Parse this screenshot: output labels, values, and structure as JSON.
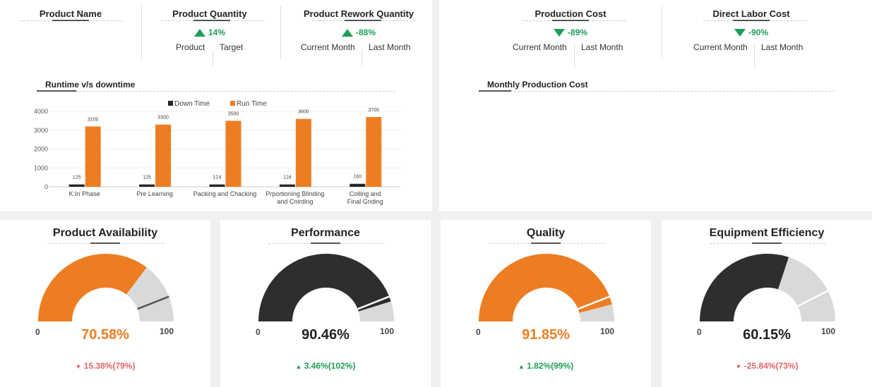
{
  "kpis_left": {
    "product_name": {
      "title": "Product Name"
    },
    "product_quantity": {
      "title": "Product Quantity",
      "delta": "14%",
      "direction": "up",
      "col1": "Product",
      "col2": "Target"
    },
    "product_rework": {
      "title": "Product Rework Quantity",
      "delta": "-88%",
      "direction": "up",
      "col1": "Current Month",
      "col2": "Last Month"
    }
  },
  "kpis_right": {
    "production_cost": {
      "title": "Production Cost",
      "delta": "-89%",
      "direction": "down",
      "col1": "Current Month",
      "col2": "Last Month"
    },
    "direct_labor": {
      "title": "Direct Labor Cost",
      "delta": "-90%",
      "direction": "down",
      "col1": "Current Month",
      "col2": "Last Month"
    }
  },
  "sections": {
    "runtime": "Runtime v/s downtime",
    "monthly": "Monthly Production Cost"
  },
  "chart_data": {
    "type": "bar",
    "categories": [
      "K:In Phase",
      "Pre Learning",
      "Packing and Chacking",
      "Prportioning Blinding and Cnirding",
      "Colling and Final Griding"
    ],
    "series": [
      {
        "name": "Down Time",
        "values": [
          125,
          125,
          124,
          124,
          160
        ],
        "color": "#262626"
      },
      {
        "name": "Run Time",
        "values": [
          3200,
          3300,
          3500,
          3600,
          3700
        ],
        "color": "#ed7d22"
      }
    ],
    "yticks": [
      "0",
      "1000",
      "2000",
      "3000",
      "4000"
    ],
    "ylim": [
      0,
      4000
    ],
    "legend": "top",
    "grid": true
  },
  "gauges": [
    {
      "title": "Product Availability",
      "value": 70.58,
      "value_label": "70.58%",
      "target": 88,
      "min_label": "0",
      "max_label": "100",
      "color": "#ed7d22",
      "marker_color": "#555555",
      "value_color": "#ed7d22",
      "delta": "15.38%(79%)",
      "delta_dir": "down",
      "delta_color": "#e06666"
    },
    {
      "title": "Performance",
      "value": 90.46,
      "value_label": "90.46%",
      "target": 88,
      "min_label": "0",
      "max_label": "100",
      "color": "#2e2e2e",
      "marker_color": "#ffffff",
      "value_color": "#222222",
      "delta": "3.46%(102%)",
      "delta_dir": "up",
      "delta_color": "#1e9e57"
    },
    {
      "title": "Quality",
      "value": 91.85,
      "value_label": "91.85%",
      "target": 88,
      "min_label": "0",
      "max_label": "100",
      "color": "#ed7d22",
      "marker_color": "#ffffff",
      "value_color": "#ed7d22",
      "delta": "1.82%(99%)",
      "delta_dir": "up",
      "delta_color": "#1e9e57"
    },
    {
      "title": "Equipment Efficiency",
      "value": 60.15,
      "value_label": "60.15%",
      "target": 85,
      "min_label": "0",
      "max_label": "100",
      "color": "#2e2e2e",
      "marker_color": "#ffffff",
      "value_color": "#222222",
      "delta": "-25.84%(73%)",
      "delta_dir": "down",
      "delta_color": "#e06666"
    }
  ]
}
